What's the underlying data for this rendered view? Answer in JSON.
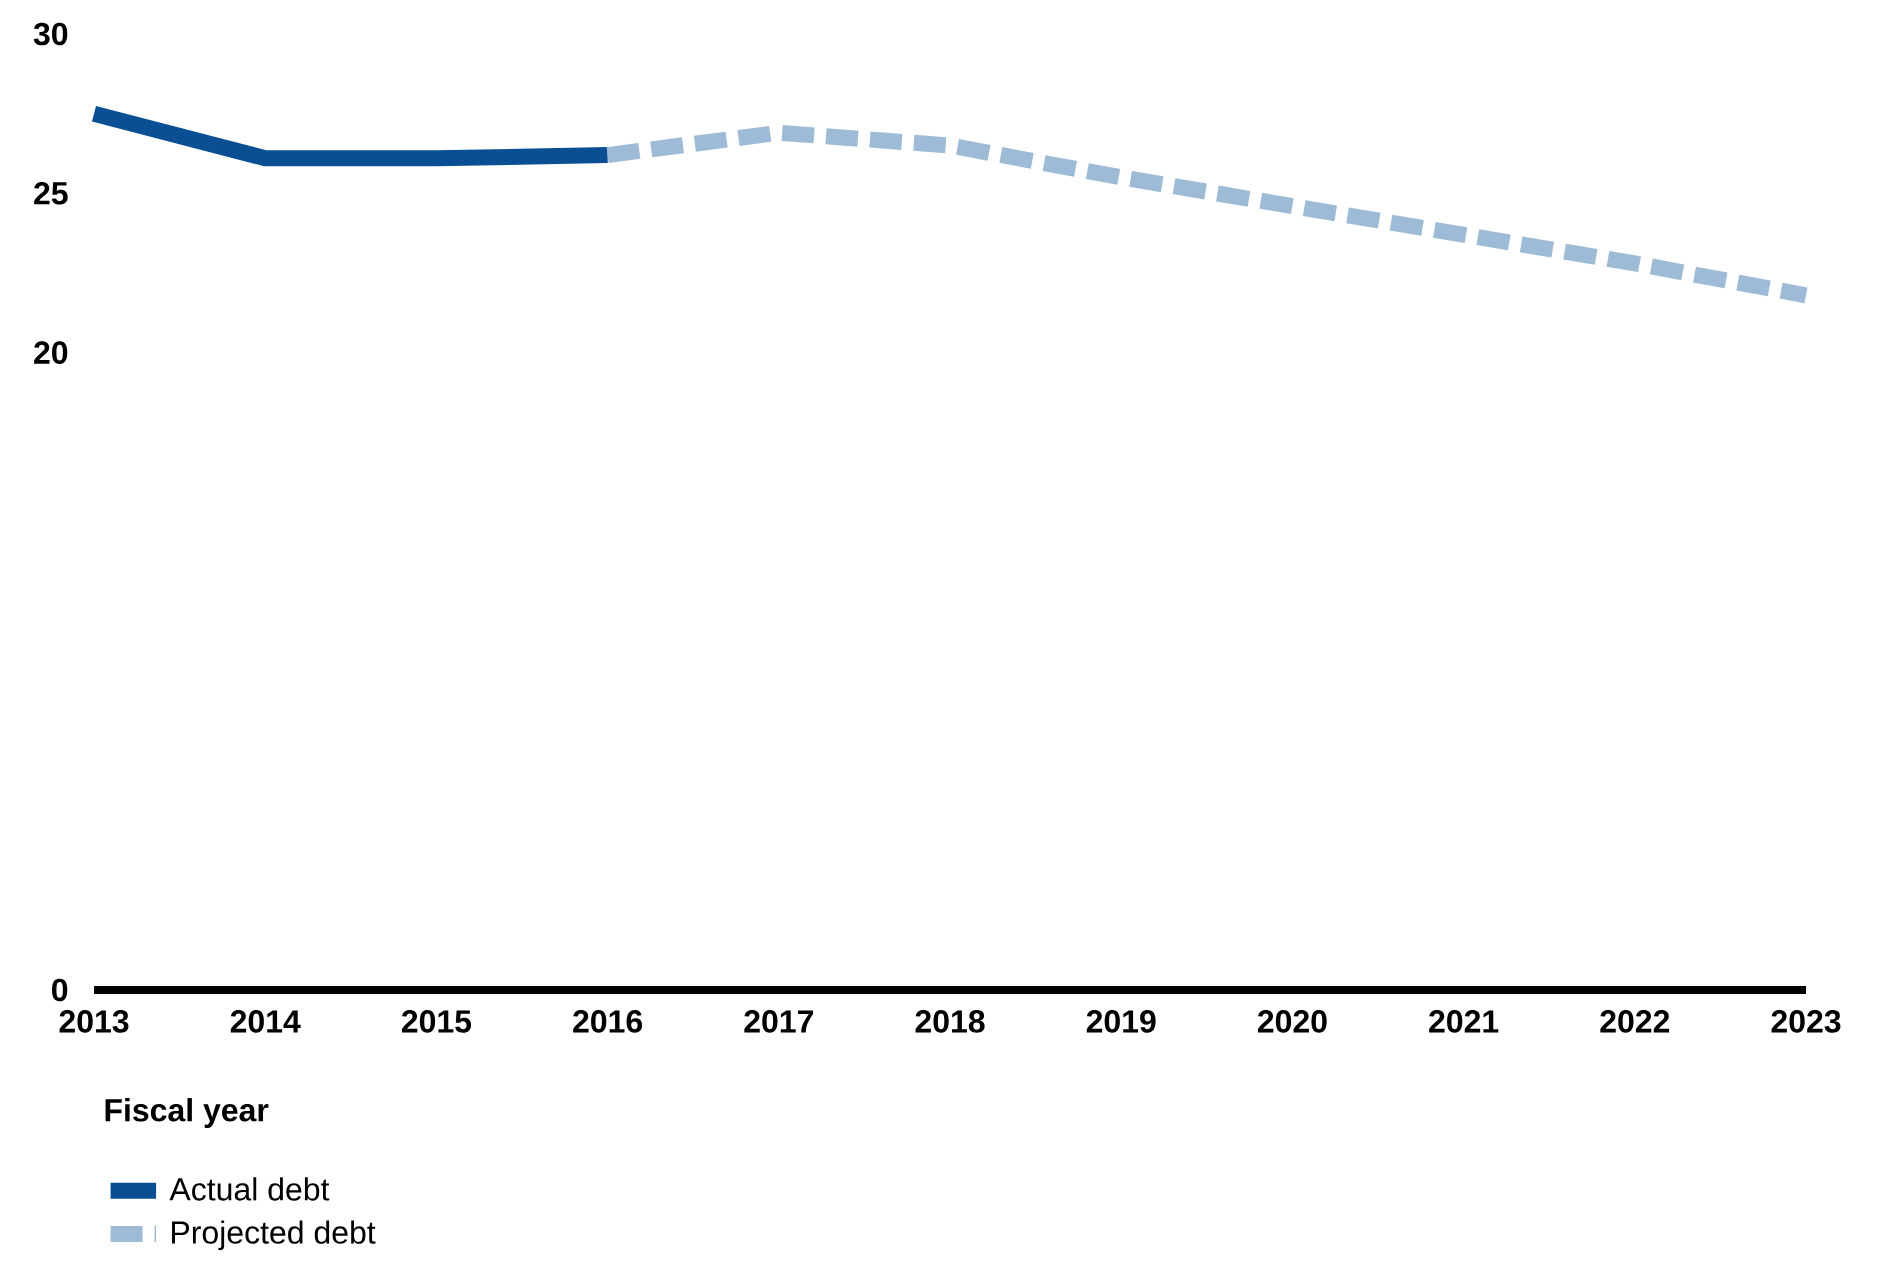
{
  "chart_data": {
    "type": "line",
    "xlabel": "Fiscal year",
    "x": [
      2013,
      2014,
      2015,
      2016,
      2017,
      2018,
      2019,
      2020,
      2021,
      2022,
      2023
    ],
    "series": [
      {
        "name": "Actual debt",
        "color": "#0a4f93",
        "line_style": "solid",
        "values": [
          27.5,
          26.1,
          26.1,
          26.2,
          null,
          null,
          null,
          null,
          null,
          null,
          null
        ]
      },
      {
        "name": "Projected debt",
        "color": "#9dbad6",
        "line_style": "dashed",
        "values": [
          null,
          null,
          null,
          26.2,
          26.9,
          26.5,
          25.5,
          24.6,
          23.7,
          22.8,
          21.8
        ]
      }
    ],
    "xlim": [
      2013,
      2023
    ],
    "xticks": [
      2013,
      2014,
      2015,
      2016,
      2017,
      2018,
      2019,
      2020,
      2021,
      2022,
      2023
    ],
    "ylim": [
      0,
      30
    ],
    "yticks": [
      0,
      20,
      25,
      30
    ],
    "grid": false,
    "legend": "bottom",
    "marker": "none"
  }
}
